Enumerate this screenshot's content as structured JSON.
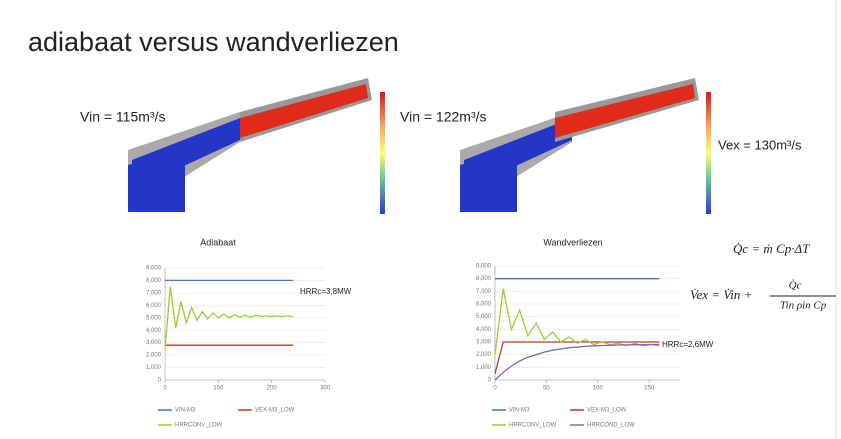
{
  "header": {
    "title": "adiabaat versus wandverliezen"
  },
  "panels": [
    {
      "label": "Vin = 115m³/s"
    },
    {
      "label": "Vin = 122m³/s",
      "extra": "Vex = 130m³/s"
    }
  ],
  "formulas": {
    "q": "Q̇c = ṁ Cp·ΔT",
    "lhs": "V̇ex = V̇in +",
    "num": "Q̇c",
    "den": "Tin ρin Cp"
  },
  "chart_data": [
    {
      "type": "line",
      "title": "Adiabaat",
      "annotation": "HRRc=3,8MW",
      "x": [
        0,
        10,
        20,
        30,
        40,
        50,
        60,
        70,
        80,
        90,
        100,
        110,
        120,
        130,
        140,
        150,
        160,
        170,
        180,
        190,
        200,
        210,
        220,
        230,
        240
      ],
      "series": [
        {
          "name": "VIN-M3",
          "color": "#4472c4",
          "values": [
            8000,
            8000,
            8000,
            8000,
            8000,
            8000,
            8000,
            8000,
            8000,
            8000,
            8000,
            8000,
            8000,
            8000,
            8000,
            8000,
            8000,
            8000,
            8000,
            8000,
            8000,
            8000,
            8000,
            8000,
            8000
          ]
        },
        {
          "name": "VEX-M3_LOW",
          "color": "#c0392b",
          "values": [
            2800,
            2800,
            2800,
            2800,
            2800,
            2800,
            2800,
            2800,
            2800,
            2800,
            2800,
            2800,
            2800,
            2800,
            2800,
            2800,
            2800,
            2800,
            2800,
            2800,
            2800,
            2800,
            2800,
            2800,
            2800
          ]
        },
        {
          "name": "HRRCONV_LOW",
          "color": "#9acd32",
          "values": [
            2500,
            7500,
            4200,
            6300,
            4600,
            5800,
            4800,
            5500,
            4900,
            5400,
            5000,
            5300,
            5000,
            5250,
            5050,
            5200,
            5050,
            5200,
            5100,
            5150,
            5100,
            5150,
            5100,
            5150,
            5100
          ]
        }
      ],
      "xlim": [
        0,
        300
      ],
      "xticks": [
        0,
        100,
        200,
        300
      ],
      "ylim": [
        0,
        9000
      ],
      "yticks": [
        0,
        {
          "value": 1000,
          "label": "1,000"
        },
        {
          "value": 2000,
          "label": "2,000"
        },
        {
          "value": 3000,
          "label": "3,000"
        },
        {
          "value": 4000,
          "label": "4,000"
        },
        {
          "value": 5000,
          "label": "5,000"
        },
        {
          "value": 6000,
          "label": "6,000"
        },
        {
          "value": 7000,
          "label": "7,000"
        },
        {
          "value": 8000,
          "label": "8,000"
        },
        {
          "value": 9000,
          "label": "9,000"
        }
      ],
      "grid": true
    },
    {
      "type": "line",
      "title": "Wandverliezen",
      "annotation": "HRRc=2,6MW",
      "x": [
        0,
        8,
        16,
        24,
        32,
        40,
        48,
        56,
        64,
        72,
        80,
        88,
        96,
        104,
        112,
        120,
        128,
        136,
        144,
        152,
        160
      ],
      "series": [
        {
          "name": "VIN-M3",
          "color": "#4472c4",
          "values": [
            8000,
            8000,
            8000,
            8000,
            8000,
            8000,
            8000,
            8000,
            8000,
            8000,
            8000,
            8000,
            8000,
            8000,
            8000,
            8000,
            8000,
            8000,
            8000,
            8000,
            8000
          ]
        },
        {
          "name": "VEX-M3_LOW",
          "color": "#c0392b",
          "values": [
            500,
            3000,
            3000,
            3000,
            3000,
            3000,
            3000,
            3000,
            3000,
            3000,
            3000,
            3000,
            3000,
            3000,
            3000,
            3000,
            3000,
            3000,
            3000,
            3000,
            3000
          ]
        },
        {
          "name": "HRRCONV_LOW",
          "color": "#9acd32",
          "values": [
            2000,
            7200,
            4000,
            5500,
            3500,
            4500,
            3200,
            3800,
            3000,
            3400,
            2900,
            3200,
            2800,
            3000,
            2800,
            2900,
            2700,
            2900,
            2700,
            2800,
            2700
          ]
        },
        {
          "name": "HRRCOND_LOW",
          "color": "#7b68b5",
          "values": [
            0,
            600,
            1100,
            1500,
            1800,
            2000,
            2200,
            2350,
            2450,
            2550,
            2600,
            2650,
            2700,
            2720,
            2740,
            2760,
            2770,
            2780,
            2790,
            2800,
            2800
          ]
        }
      ],
      "xlim": [
        0,
        180
      ],
      "xticks": [
        0,
        50,
        100,
        150
      ],
      "ylim": [
        0,
        9000
      ],
      "yticks": [
        0,
        {
          "value": 1000,
          "label": "1,000"
        },
        {
          "value": 2000,
          "label": "2,000"
        },
        {
          "value": 3000,
          "label": "3,000"
        },
        {
          "value": 4000,
          "label": "4,000"
        },
        {
          "value": 5000,
          "label": "5,000"
        },
        {
          "value": 6000,
          "label": "6,000"
        },
        {
          "value": 7000,
          "label": "7,000"
        },
        {
          "value": 8000,
          "label": "8,000"
        },
        {
          "value": 9000,
          "label": "9,000"
        }
      ],
      "grid": true
    }
  ]
}
